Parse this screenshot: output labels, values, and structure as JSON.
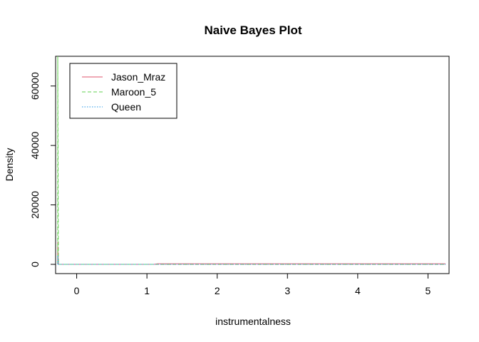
{
  "chart_data": {
    "type": "line",
    "title": "Naive Bayes Plot",
    "xlabel": "instrumentalness",
    "ylabel": "Density",
    "xlim": [
      -0.3,
      5.3
    ],
    "ylim": [
      0,
      70000
    ],
    "x_ticks": [
      0,
      1,
      2,
      3,
      4,
      5
    ],
    "x_tick_labels": [
      "0",
      "1",
      "2",
      "3",
      "4",
      "5"
    ],
    "y_ticks": [
      0,
      20000,
      40000,
      60000
    ],
    "y_tick_labels": [
      "0",
      "20000",
      "40000",
      "60000"
    ],
    "grid": false,
    "legend_position": "top-left",
    "series": [
      {
        "name": "Jason_Mraz",
        "color": "#DF536B",
        "dash": "solid",
        "x": [
          -0.27,
          -0.27,
          -0.26,
          1.1,
          1.15,
          5.25
        ],
        "y": [
          0,
          7500,
          0,
          0,
          200,
          200
        ]
      },
      {
        "name": "Maroon_5",
        "color": "#61D04F",
        "dash": "dashed",
        "x": [
          -0.27,
          -0.27,
          -0.26,
          5.25
        ],
        "y": [
          0,
          70000,
          0,
          0
        ]
      },
      {
        "name": "Queen",
        "color": "#2297E6",
        "dash": "dotted",
        "x": [
          -0.27,
          -0.27,
          -0.26,
          5.25
        ],
        "y": [
          0,
          3000,
          0,
          0
        ]
      }
    ]
  }
}
